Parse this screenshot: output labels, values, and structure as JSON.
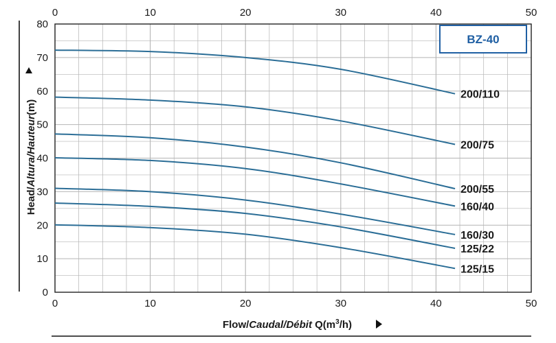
{
  "chart_data": {
    "type": "line",
    "title": "BZ-40",
    "xlabel_parts": [
      "Flow/",
      "Caudal/",
      "Débit",
      " Q(m",
      "3",
      "/h)"
    ],
    "ylabel_parts": [
      "Head/",
      "Altura/",
      "Hauteur",
      "(m)"
    ],
    "xlim": [
      0,
      50
    ],
    "ylim": [
      0,
      80
    ],
    "x_ticks": [
      "0",
      "10",
      "20",
      "30",
      "40",
      "50"
    ],
    "y_ticks": [
      "0",
      "10",
      "20",
      "30",
      "40",
      "50",
      "60",
      "70",
      "80"
    ],
    "grid": true,
    "series": [
      {
        "name": "200/110",
        "x": [
          0,
          10,
          20,
          30,
          42
        ],
        "y": [
          72.2,
          71.8,
          70,
          66.5,
          59.2
        ]
      },
      {
        "name": "200/75",
        "x": [
          0,
          10,
          20,
          30,
          42
        ],
        "y": [
          58.2,
          57.3,
          55.3,
          51.1,
          44.1
        ]
      },
      {
        "name": "200/55",
        "x": [
          0,
          10,
          20,
          30,
          42
        ],
        "y": [
          47.2,
          46.1,
          43.3,
          38.6,
          30.9
        ]
      },
      {
        "name": "160/40",
        "x": [
          0,
          10,
          20,
          30,
          42
        ],
        "y": [
          40.1,
          39.3,
          36.9,
          32.3,
          25.7
        ]
      },
      {
        "name": "160/30",
        "x": [
          0,
          10,
          20,
          30,
          42
        ],
        "y": [
          31,
          30,
          27.5,
          23.3,
          17.2
        ]
      },
      {
        "name": "125/22",
        "x": [
          0,
          10,
          20,
          30,
          42
        ],
        "y": [
          26.6,
          25.6,
          23.5,
          19.5,
          13.1
        ]
      },
      {
        "name": "125/15",
        "x": [
          0,
          10,
          20,
          30,
          42
        ],
        "y": [
          20.1,
          19.3,
          17.3,
          13.3,
          7.1
        ]
      }
    ]
  },
  "colors": {
    "curve": "#2a6d96",
    "grid": "#b4b4b4",
    "badge_text": "#1f5fa3",
    "badge_border": "#1f5fa3",
    "axis": "#222222"
  }
}
